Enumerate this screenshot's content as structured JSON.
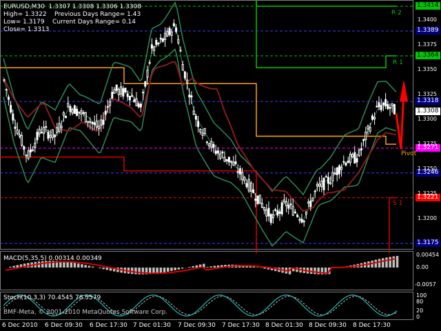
{
  "chart": {
    "symbol_header": "EURUSD,M30  1.3307 1.3308 1.3306 1.3308",
    "high_line": "High= 1.3322    Previous Days Range= 1.43",
    "low_line": "Low= 1.3179    Current Days Range= 0.14",
    "close_line": "Close= 1.3313"
  },
  "price_labels": [
    {
      "text": "1.3414",
      "price": 1.3414,
      "bg": "#00c800",
      "fg": "#000000"
    },
    {
      "text": "1.3389",
      "price": 1.3389,
      "bg": "#000080",
      "fg": "#ffffff"
    },
    {
      "text": "1.3364",
      "price": 1.3364,
      "bg": "#00c800",
      "fg": "#000000"
    },
    {
      "text": "1.3318",
      "price": 1.3318,
      "bg": "#000080",
      "fg": "#ffffff"
    },
    {
      "text": "1.3308",
      "price": 1.3308,
      "bg": "#ffffff",
      "fg": "#000000"
    },
    {
      "text": "1.3271",
      "price": 1.3271,
      "bg": "#ff00ff",
      "fg": "#ffffff"
    },
    {
      "text": "1.3246",
      "price": 1.3246,
      "bg": "#000080",
      "fg": "#ffffff"
    },
    {
      "text": "1.3221",
      "price": 1.3221,
      "bg": "#ff0000",
      "fg": "#ffffff"
    },
    {
      "text": "1.3175",
      "price": 1.3175,
      "bg": "#000080",
      "fg": "#ffffff"
    }
  ],
  "price_axis_ticks": [
    "1.3400",
    "1.3375",
    "1.3350",
    "1.3325",
    "1.3300",
    "1.3275",
    "1.3250",
    "1.3225",
    "1.3200"
  ],
  "pivot_names": [
    {
      "text": "R 2",
      "color": "#00c800"
    },
    {
      "text": "R 1",
      "color": "#00c800"
    },
    {
      "text": "Pivot",
      "color": "#ffa500"
    },
    {
      "text": "S 1",
      "color": "#ff0000"
    }
  ],
  "macd": {
    "label": "MACD(5,35,5) 0.00314 0.00349",
    "ticks": [
      "0.00454",
      "0.00",
      "-0.0057"
    ]
  },
  "stoch": {
    "label": "Stoch(10,3,3) 70.4545 78.5579",
    "ticks": [
      "100",
      "80",
      "20",
      "0"
    ]
  },
  "copyright": "BMF-Meta, © 2001-2010 MetaQuotes Software Corp.",
  "time_labels": [
    "6 Dec 2010",
    "6 Dec 09:30",
    "6 Dec 17:30",
    "7 Dec 01:30",
    "7 Dec 09:30",
    "7 Dec 17:30",
    "8 Dec 01:30",
    "8 Dec 09:30",
    "8 Dec 17:30"
  ],
  "colors": {
    "bull_candle": "#ffffff",
    "bear_candle": "#ffffff",
    "bollinger": "#2e8b57",
    "ma": "#8b1a1a",
    "pivot": "#ffa500",
    "r_levels": "#00c800",
    "s_levels": "#dc0000",
    "macd_hist": "#c0c0c0",
    "macd_signal": "#dc0000",
    "stoch_main": "#20b2aa",
    "stoch_signal": "#c0c0c0",
    "arrow_down": "#ff0000",
    "arrow_up": "#ff0000"
  }
}
